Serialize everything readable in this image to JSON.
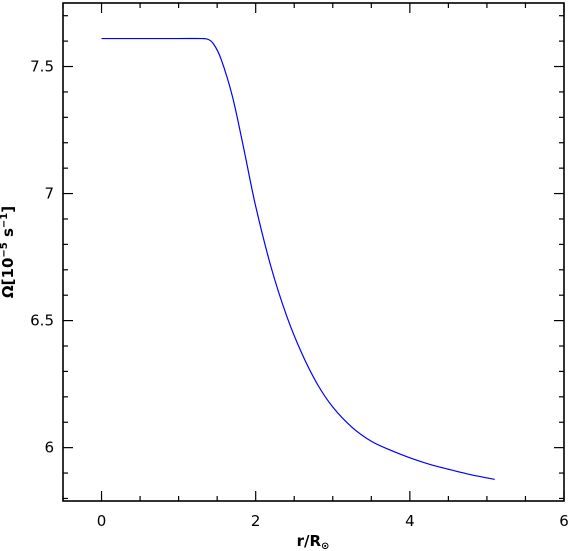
{
  "chart_data": {
    "type": "line",
    "title": "",
    "xlabel": {
      "main": "r/R",
      "subscript": "⊙"
    },
    "ylabel": {
      "main": "Ω[10",
      "exp1": "−5",
      "mid": " s",
      "exp2": "−1",
      "end": "]"
    },
    "xlim": [
      -0.5,
      6
    ],
    "ylim": [
      5.79,
      7.75
    ],
    "x_ticks": [
      0,
      2,
      4,
      6
    ],
    "x_tick_labels": [
      "0",
      "2",
      "4",
      "6"
    ],
    "y_ticks": [
      6,
      6.5,
      7,
      7.5
    ],
    "y_tick_labels": [
      "6",
      "6.5",
      "7",
      "7.5"
    ],
    "grid": false,
    "series": [
      {
        "color": "#0000ff",
        "x": [
          0,
          0.5,
          1.0,
          1.3,
          1.38,
          1.45,
          1.55,
          1.7,
          1.85,
          2.0,
          2.2,
          2.4,
          2.6,
          2.8,
          3.0,
          3.25,
          3.5,
          3.75,
          4.0,
          4.25,
          4.5,
          4.8,
          5.1
        ],
        "y": [
          7.61,
          7.61,
          7.61,
          7.61,
          7.607,
          7.59,
          7.53,
          7.38,
          7.17,
          6.95,
          6.71,
          6.52,
          6.37,
          6.25,
          6.16,
          6.08,
          6.025,
          5.99,
          5.96,
          5.935,
          5.915,
          5.893,
          5.875
        ]
      }
    ]
  }
}
